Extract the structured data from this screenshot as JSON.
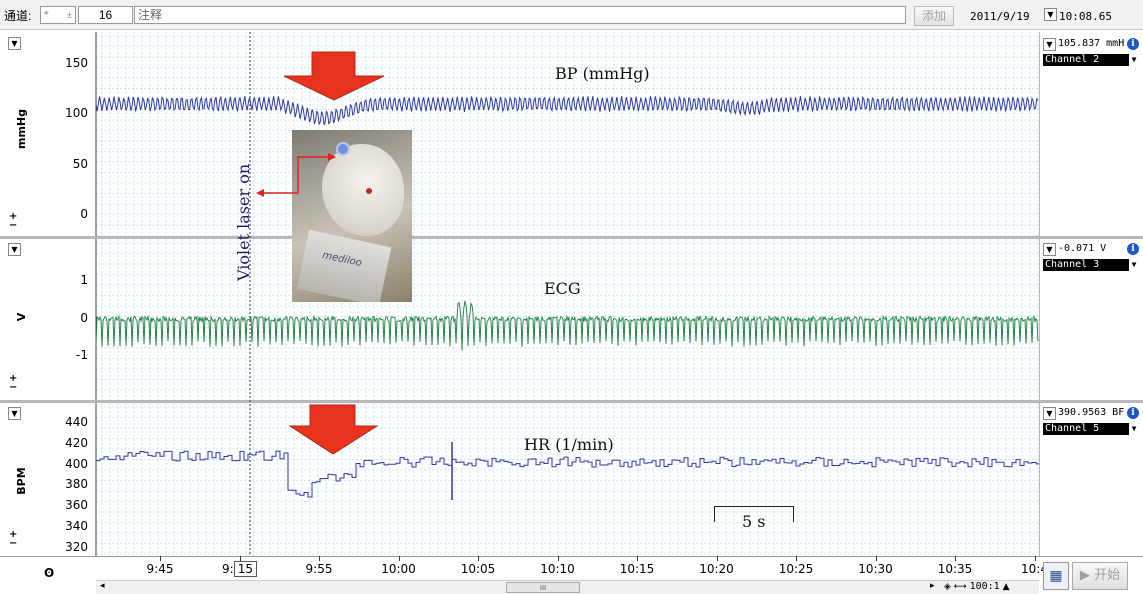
{
  "toolbar": {
    "channel_label": "通道:",
    "channel_value": "*",
    "channel_count": "16",
    "annotation_label": "注释",
    "add_button": "添加",
    "date": "2011/9/19",
    "time": "10:08.65"
  },
  "panels": {
    "bp": {
      "unit": "mmHg",
      "ticks": [
        "150",
        "100",
        "50",
        "0"
      ],
      "readout": "105.837 mmH",
      "channel": "Channel 2",
      "label": "BP (mmHg)"
    },
    "ecg": {
      "unit": "V",
      "ticks": [
        "1",
        "0",
        "-1"
      ],
      "readout": "-0.071 V",
      "channel": "Channel 3",
      "label": "ECG"
    },
    "hr": {
      "unit": "BPM",
      "ticks": [
        "440",
        "420",
        "400",
        "380",
        "360",
        "340",
        "320"
      ],
      "readout": "390.9563 BF",
      "channel": "Channel 5",
      "label": "HR (1/min)"
    }
  },
  "annotations": {
    "violet_label": "Violet laser on",
    "scale_bar": "5 s",
    "photo_text": "mediloo"
  },
  "time_axis": {
    "ticks": [
      "9:45",
      "9:50",
      "9:55",
      "10:00",
      "10:05",
      "10:10",
      "10:15",
      "10:20",
      "10:25",
      "10:30",
      "10:35",
      "10:4"
    ],
    "cursor_box": "15",
    "cursor_prefix": "9:"
  },
  "bottom": {
    "zoom": "100:1",
    "start_button": "开始",
    "scroll_grip": "III"
  },
  "colors": {
    "bp_trace": "#2f3aa0",
    "ecg_trace": "#1a7a3a",
    "hr_trace": "#2f3aa0",
    "grid": "#9fd4e8",
    "arrow": "#e8321e"
  }
}
